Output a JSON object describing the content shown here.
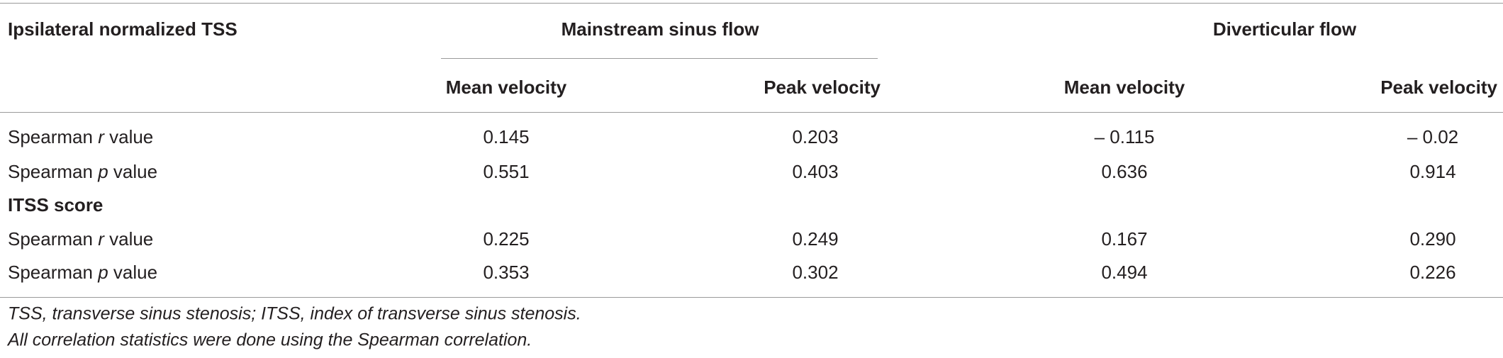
{
  "table": {
    "group_headers": [
      "Ipsilateral normalized TSS",
      "Mainstream sinus flow",
      "Diverticular flow"
    ],
    "sub_headers": [
      "Mean velocity",
      "Peak velocity",
      "Mean velocity",
      "Peak velocity"
    ],
    "rows": [
      {
        "label": [
          "Spearman",
          "r",
          "value"
        ],
        "cells": [
          "0.145",
          "0.203",
          "– 0.115",
          "– 0.02"
        ]
      },
      {
        "label": [
          "Spearman",
          "p",
          "value"
        ],
        "cells": [
          "0.551",
          "0.403",
          "0.636",
          "0.914"
        ]
      },
      {
        "section": "ITSS score"
      },
      {
        "label": [
          "Spearman",
          "r",
          "value"
        ],
        "cells": [
          "0.225",
          "0.249",
          "0.167",
          "0.290"
        ]
      },
      {
        "label": [
          "Spearman",
          "p",
          "value"
        ],
        "cells": [
          "0.353",
          "0.302",
          "0.494",
          "0.226"
        ]
      }
    ]
  },
  "footnotes": [
    "TSS, transverse sinus stenosis; ITSS, index of transverse sinus stenosis.",
    "All correlation statistics were done using the Spearman correlation."
  ]
}
